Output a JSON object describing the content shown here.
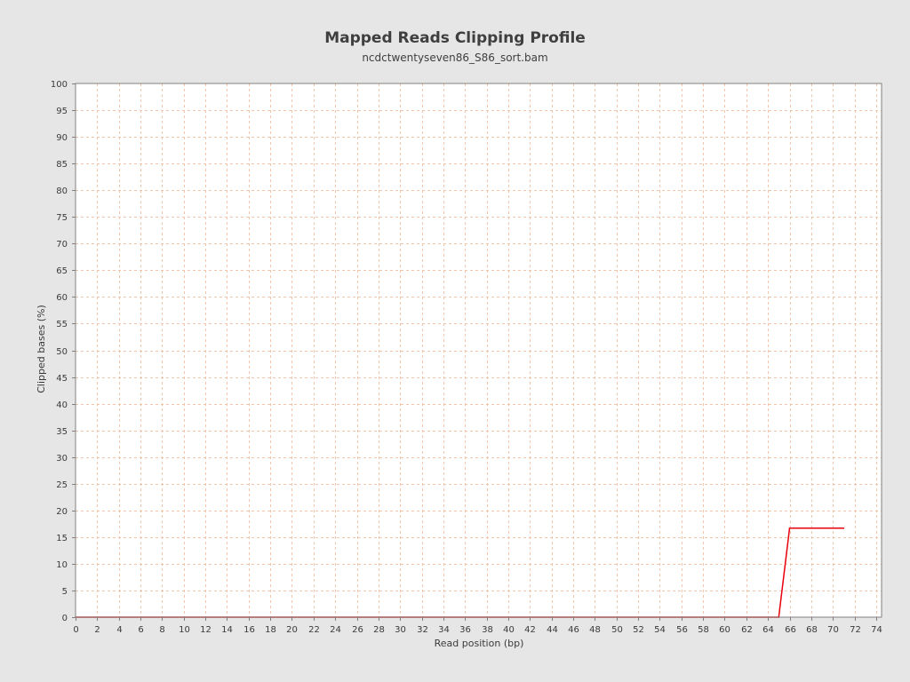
{
  "chart_data": {
    "type": "line",
    "title": "Mapped Reads Clipping Profile",
    "subtitle": "ncdctwentyseven86_S86_sort.bam",
    "xlabel": "Read position (bp)",
    "ylabel": "Clipped bases (%)",
    "xlim": [
      0,
      74.5
    ],
    "ylim": [
      0,
      100
    ],
    "x_ticks": [
      0,
      2,
      4,
      6,
      8,
      10,
      12,
      14,
      16,
      18,
      20,
      22,
      24,
      26,
      28,
      30,
      32,
      34,
      36,
      38,
      40,
      42,
      44,
      46,
      48,
      50,
      52,
      54,
      56,
      58,
      60,
      62,
      64,
      66,
      68,
      70,
      72,
      74
    ],
    "y_ticks": [
      0,
      5,
      10,
      15,
      20,
      25,
      30,
      35,
      40,
      45,
      50,
      55,
      60,
      65,
      70,
      75,
      80,
      85,
      90,
      95,
      100
    ],
    "grid": true,
    "background": "#ffffff",
    "grid_color": "#f2c4a8",
    "series": [
      {
        "color": "#e8000b",
        "x": [
          0,
          65,
          66,
          67,
          68,
          69,
          70,
          71
        ],
        "y": [
          0,
          0,
          16.67,
          16.67,
          16.67,
          16.67,
          16.67,
          16.67
        ]
      }
    ]
  }
}
